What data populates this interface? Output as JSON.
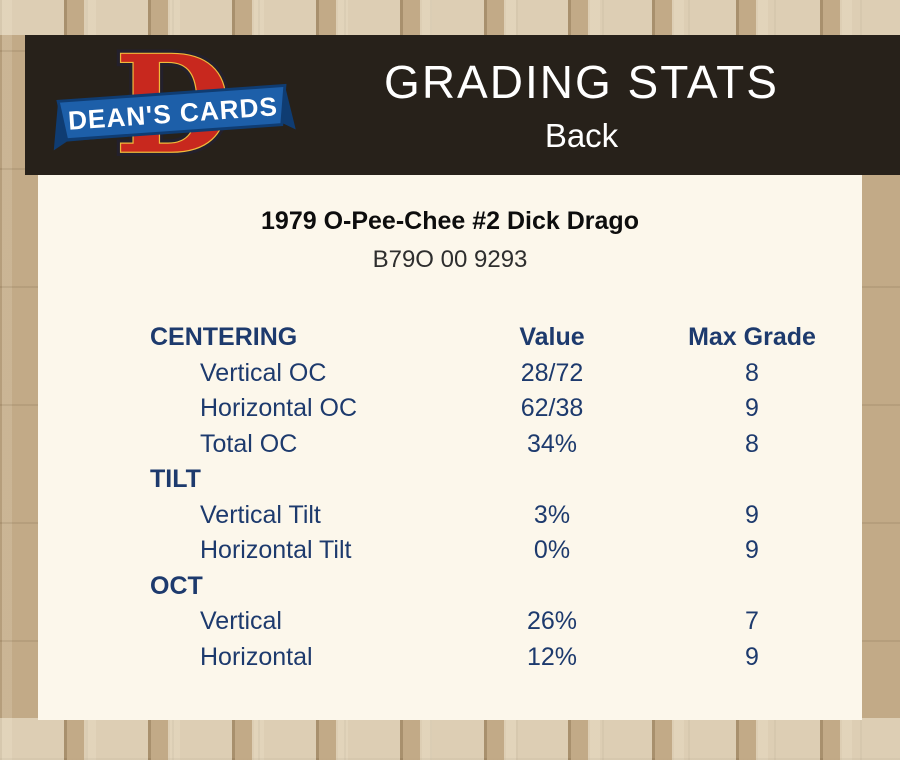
{
  "header": {
    "title": "GRADING STATS",
    "subtitle": "Back",
    "logo": {
      "icon": "deans-cards-logo",
      "letter": "D",
      "text": "DEAN'S CARDS"
    }
  },
  "card": {
    "title": "1979 O-Pee-Chee #2 Dick Drago",
    "serial": "B79O 00 9293"
  },
  "table": {
    "header": {
      "col1": "CENTERING",
      "col2": "Value",
      "col3": "Max Grade"
    },
    "rows": [
      {
        "type": "data",
        "label": "Vertical OC",
        "value": "28/72",
        "grade": "8"
      },
      {
        "type": "data",
        "label": "Horizontal OC",
        "value": "62/38",
        "grade": "9"
      },
      {
        "type": "data",
        "label": "Total OC",
        "value": "34%",
        "grade": "8"
      },
      {
        "type": "section",
        "label": "TILT",
        "value": "",
        "grade": ""
      },
      {
        "type": "data",
        "label": "Vertical Tilt",
        "value": "3%",
        "grade": "9"
      },
      {
        "type": "data",
        "label": "Horizontal Tilt",
        "value": "0%",
        "grade": "9"
      },
      {
        "type": "section",
        "label": "OCT",
        "value": "",
        "grade": ""
      },
      {
        "type": "data",
        "label": "Vertical",
        "value": "26%",
        "grade": "7"
      },
      {
        "type": "data",
        "label": "Horizontal",
        "value": "12%",
        "grade": "9"
      }
    ]
  },
  "colors": {
    "page_background": "#c2aa87",
    "header_background": "#27211a",
    "panel_background": "#fcf7eb",
    "table_text": "#1d3a6d",
    "header_text": "#ffffff",
    "logo_red": "#c8281e",
    "logo_gold": "#f0b93a",
    "ribbon_blue": "#1d5fa9",
    "ribbon_dark_blue": "#0f3c72"
  }
}
